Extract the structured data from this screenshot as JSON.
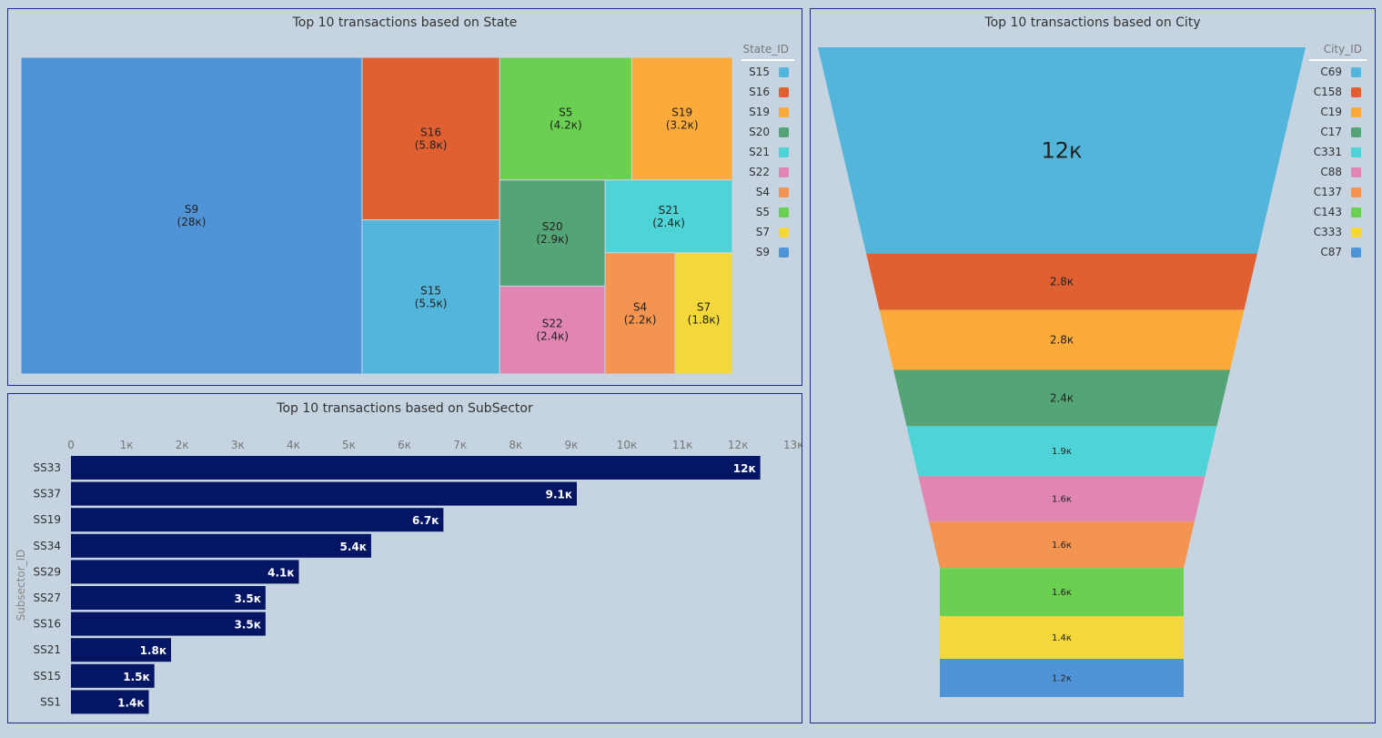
{
  "state_panel": {
    "title": "Top 10 transactions based on State",
    "legend_title": "State_ID",
    "legend": [
      {
        "label": "S15",
        "color": "#52b5d9"
      },
      {
        "label": "S16",
        "color": "#e06031"
      },
      {
        "label": "S19",
        "color": "#fcaa3a"
      },
      {
        "label": "S20",
        "color": "#54a478"
      },
      {
        "label": "S21",
        "color": "#4ed4d6"
      },
      {
        "label": "S22",
        "color": "#e186b2"
      },
      {
        "label": "S4",
        "color": "#f39551"
      },
      {
        "label": "S5",
        "color": "#6bd051"
      },
      {
        "label": "S7",
        "color": "#f4d83b"
      },
      {
        "label": "S9",
        "color": "#5094d8"
      }
    ]
  },
  "subsector_panel": {
    "title": "Top 10 transactions based on SubSector",
    "ylabel": "Subsector_ID",
    "bar_color": "#041563"
  },
  "city_panel": {
    "title": "Top 10 transactions based on City",
    "legend_title": "City_ID",
    "legend": [
      {
        "label": "C69",
        "color": "#52b5d9"
      },
      {
        "label": "C158",
        "color": "#e06031"
      },
      {
        "label": "C19",
        "color": "#fcaa3a"
      },
      {
        "label": "C17",
        "color": "#54a478"
      },
      {
        "label": "C331",
        "color": "#4ed4d6"
      },
      {
        "label": "C88",
        "color": "#e186b2"
      },
      {
        "label": "C137",
        "color": "#f39551"
      },
      {
        "label": "C143",
        "color": "#6bd051"
      },
      {
        "label": "C333",
        "color": "#f4d83b"
      },
      {
        "label": "C87",
        "color": "#5094d8"
      }
    ]
  },
  "chart_data": [
    {
      "type": "treemap",
      "title": "Top 10 transactions based on State",
      "legend_title": "State_ID",
      "items": [
        {
          "id": "S9",
          "label": "(28к)",
          "value": 28000
        },
        {
          "id": "S16",
          "label": "(5.8к)",
          "value": 5800
        },
        {
          "id": "S15",
          "label": "(5.5к)",
          "value": 5500
        },
        {
          "id": "S5",
          "label": "(4.2к)",
          "value": 4200
        },
        {
          "id": "S19",
          "label": "(3.2к)",
          "value": 3200
        },
        {
          "id": "S20",
          "label": "(2.9к)",
          "value": 2900
        },
        {
          "id": "S22",
          "label": "(2.4к)",
          "value": 2400
        },
        {
          "id": "S21",
          "label": "(2.4к)",
          "value": 2400
        },
        {
          "id": "S4",
          "label": "(2.2к)",
          "value": 2200
        },
        {
          "id": "S7",
          "label": "(1.8к)",
          "value": 1800
        }
      ]
    },
    {
      "type": "bar",
      "orientation": "horizontal",
      "title": "Top 10 transactions based on SubSector",
      "ylabel": "Subsector_ID",
      "categories": [
        "SS33",
        "SS37",
        "SS19",
        "SS34",
        "SS29",
        "SS27",
        "SS16",
        "SS21",
        "SS15",
        "SS1"
      ],
      "values": [
        12400,
        9100,
        6700,
        5400,
        4100,
        3500,
        3500,
        1800,
        1500,
        1400
      ],
      "value_labels": [
        "12к",
        "9.1к",
        "6.7к",
        "5.4к",
        "4.1к",
        "3.5к",
        "3.5к",
        "1.8к",
        "1.5к",
        "1.4к"
      ],
      "xticks": [
        "0",
        "1к",
        "2к",
        "3к",
        "4к",
        "5к",
        "6к",
        "7к",
        "8к",
        "9к",
        "10к",
        "11к",
        "12к",
        "13к"
      ],
      "xlim": [
        0,
        13000
      ],
      "grid": false
    },
    {
      "type": "funnel",
      "title": "Top 10 transactions based on City",
      "legend_title": "City_ID",
      "stages": [
        "C69",
        "C158",
        "C19",
        "C17",
        "C331",
        "C88",
        "C137",
        "C143",
        "C333",
        "C87"
      ],
      "values": [
        12000,
        2800,
        2800,
        2400,
        1900,
        1600,
        1600,
        1600,
        1400,
        1200
      ],
      "value_labels": [
        "12к",
        "2.8к",
        "2.8к",
        "2.4к",
        "1.9к",
        "1.6к",
        "1.6к",
        "1.6к",
        "1.4к",
        "1.2к"
      ]
    }
  ]
}
